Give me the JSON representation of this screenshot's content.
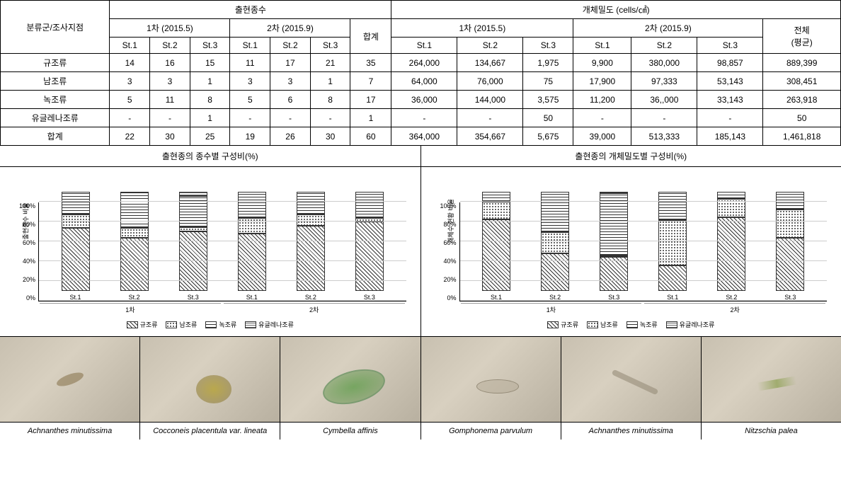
{
  "table": {
    "row_header": "분류군/조사지점",
    "group1": "출현종수",
    "group2": "개체밀도 (cells/㎠)",
    "survey1": "1차 (2015.5)",
    "survey2": "2차 (2015.9)",
    "sum": "합계",
    "total_avg": "전체\n(평균)",
    "st1": "St.1",
    "st2": "St.2",
    "st3": "St.3",
    "rows": [
      {
        "name": "규조류",
        "s1_1": "14",
        "s1_2": "16",
        "s1_3": "15",
        "s2_1": "11",
        "s2_2": "17",
        "s2_3": "21",
        "sum": "35",
        "d1_1": "264,000",
        "d1_2": "134,667",
        "d1_3": "1,975",
        "d2_1": "9,900",
        "d2_2": "380,000",
        "d2_3": "98,857",
        "total": "889,399"
      },
      {
        "name": "남조류",
        "s1_1": "3",
        "s1_2": "3",
        "s1_3": "1",
        "s2_1": "3",
        "s2_2": "3",
        "s2_3": "1",
        "sum": "7",
        "d1_1": "64,000",
        "d1_2": "76,000",
        "d1_3": "75",
        "d2_1": "17,900",
        "d2_2": "97,333",
        "d2_3": "53,143",
        "total": "308,451"
      },
      {
        "name": "녹조류",
        "s1_1": "5",
        "s1_2": "11",
        "s1_3": "8",
        "s2_1": "5",
        "s2_2": "6",
        "s2_3": "8",
        "sum": "17",
        "d1_1": "36,000",
        "d1_2": "144,000",
        "d1_3": "3,575",
        "d2_1": "11,200",
        "d2_2": "36,,000",
        "d2_3": "33,143",
        "total": "263,918"
      },
      {
        "name": "유글레나조류",
        "s1_1": "-",
        "s1_2": "-",
        "s1_3": "1",
        "s2_1": "-",
        "s2_2": "-",
        "s2_3": "-",
        "sum": "1",
        "d1_1": "-",
        "d1_2": "-",
        "d1_3": "50",
        "d2_1": "-",
        "d2_2": "-",
        "d2_3": "-",
        "total": "50"
      },
      {
        "name": "합계",
        "s1_1": "22",
        "s1_2": "30",
        "s1_3": "25",
        "s2_1": "19",
        "s2_2": "26",
        "s2_3": "30",
        "sum": "60",
        "d1_1": "364,000",
        "d1_2": "354,667",
        "d1_3": "5,675",
        "d2_1": "39,000",
        "d2_2": "513,333",
        "d2_3": "185,143",
        "total": "1,461,818"
      }
    ]
  },
  "chart_titles": {
    "left": "출현종의 종수별 구성비(%)",
    "right": "출현종의 개체밀도별 구성비(%)"
  },
  "chart_left": {
    "y_label": "출현종수 비율",
    "y_ticks": [
      "100%",
      "80%",
      "60%",
      "40%",
      "20%",
      "0%"
    ],
    "bars": [
      {
        "label": "St.1",
        "segs": [
          63.6,
          13.6,
          22.7,
          0
        ]
      },
      {
        "label": "St.2",
        "segs": [
          53.3,
          10.0,
          36.7,
          0
        ]
      },
      {
        "label": "St.3",
        "segs": [
          60.0,
          4.0,
          32.0,
          4.0
        ]
      },
      {
        "label": "St.1",
        "segs": [
          57.9,
          15.8,
          26.3,
          0
        ]
      },
      {
        "label": "St.2",
        "segs": [
          65.4,
          11.5,
          23.1,
          0
        ]
      },
      {
        "label": "St.3",
        "segs": [
          70.0,
          3.3,
          26.7,
          0
        ]
      }
    ],
    "x_groups": [
      "1차",
      "2차"
    ]
  },
  "chart_right": {
    "y_label": "개체수 현황 비율",
    "y_ticks": [
      "100%",
      "80%",
      "60%",
      "40%",
      "20%",
      "0%"
    ],
    "bars": [
      {
        "label": "St.1",
        "segs": [
          72.5,
          17.6,
          9.9,
          0
        ]
      },
      {
        "label": "St.2",
        "segs": [
          38.0,
          21.4,
          40.6,
          0
        ]
      },
      {
        "label": "St.3",
        "segs": [
          34.8,
          1.3,
          63.0,
          0.9
        ]
      },
      {
        "label": "St.1",
        "segs": [
          25.4,
          45.9,
          28.7,
          0
        ]
      },
      {
        "label": "St.2",
        "segs": [
          74.0,
          19.0,
          7.0,
          0
        ]
      },
      {
        "label": "St.3",
        "segs": [
          53.4,
          28.7,
          17.9,
          0
        ]
      }
    ],
    "x_groups": [
      "1차",
      "2차"
    ]
  },
  "legend": {
    "items": [
      "규조류",
      "남조류",
      "녹조류",
      "유글레나조류"
    ]
  },
  "specimens": [
    {
      "name": "Achnanthes minutissima",
      "shape": "oval-diatom"
    },
    {
      "name": "Cocconeis placentula var. lineata",
      "shape": "round-diatom"
    },
    {
      "name": "Cymbella affinis",
      "shape": "boat-diatom"
    },
    {
      "name": "Gomphonema parvulum",
      "shape": "thin-diatom"
    },
    {
      "name": "Achnanthes minutissima",
      "shape": "needle-diatom"
    },
    {
      "name": "Nitzschia palea",
      "shape": "spindle-diatom"
    }
  ],
  "patterns": [
    "pat-diag",
    "pat-dots",
    "pat-hlines",
    "pat-bricks"
  ],
  "colors": {
    "border": "#000000",
    "grid": "#cccccc",
    "specimen_bg": "#c8c0b0"
  }
}
